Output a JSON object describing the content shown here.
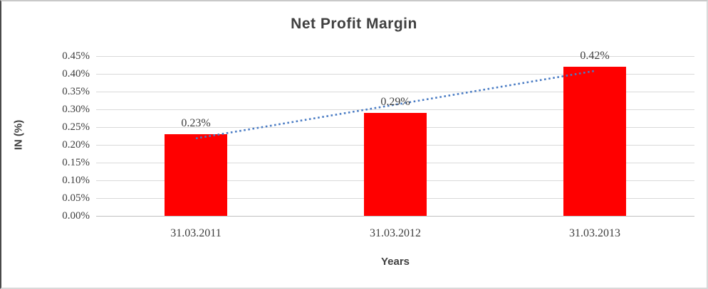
{
  "chart_data": {
    "type": "bar",
    "title": "Net Profit Margin",
    "categories": [
      "31.03.2011",
      "31.03.2012",
      "31.03.2013"
    ],
    "values": [
      0.23,
      0.29,
      0.42
    ],
    "data_labels": [
      "0.23%",
      "0.29%",
      "0.42%"
    ],
    "xlabel": "Years",
    "ylabel": "IN (%)",
    "ylim": [
      0,
      0.45
    ],
    "ytick_step": 0.05,
    "ytick_labels": [
      "0.00%",
      "0.05%",
      "0.10%",
      "0.15%",
      "0.20%",
      "0.25%",
      "0.30%",
      "0.35%",
      "0.40%",
      "0.45%"
    ],
    "grid": true,
    "legend": "none",
    "bar_color": "#ff0000",
    "text_color": "#3d3d3d",
    "title_color": "#404040",
    "gridline_color": "#d9d9d9",
    "axisline_color": "#bfbfbf",
    "trendline": {
      "type": "linear",
      "style": "dotted",
      "color": "#4a7cc4",
      "start_value": 0.2183,
      "end_value": 0.4083
    }
  }
}
